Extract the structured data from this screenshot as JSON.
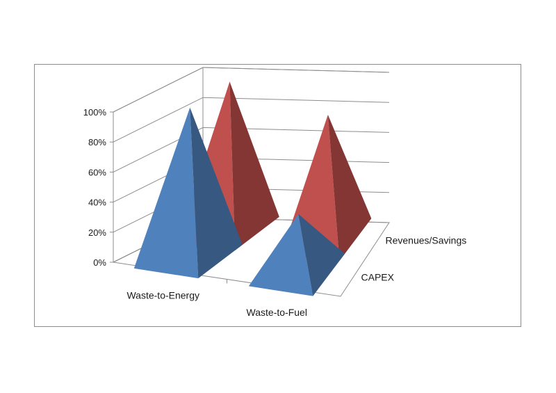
{
  "chart_data": {
    "type": "bar",
    "style": "3d-pyramid",
    "categories": [
      "Waste-to-Energy",
      "Waste-to-Fuel"
    ],
    "series": [
      {
        "name": "CAPEX",
        "values": [
          100,
          38
        ],
        "color": "#4f81bd"
      },
      {
        "name": "Revenues/Savings",
        "values": [
          100,
          82
        ],
        "color": "#c0504d"
      }
    ],
    "y_ticks": [
      "0%",
      "20%",
      "40%",
      "60%",
      "80%",
      "100%"
    ],
    "ylim": [
      0,
      100
    ],
    "grid": true,
    "legend": "none"
  }
}
